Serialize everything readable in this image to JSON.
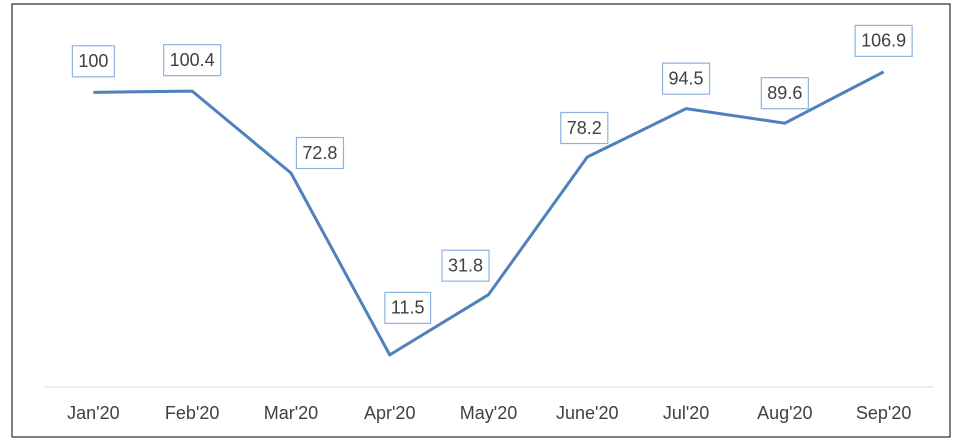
{
  "chart_data": {
    "type": "line",
    "categories": [
      "Jan'20",
      "Feb'20",
      "Mar'20",
      "Apr'20",
      "May'20",
      "June'20",
      "Jul'20",
      "Aug'20",
      "Sep'20"
    ],
    "values": [
      100,
      100.4,
      72.8,
      11.5,
      31.8,
      78.2,
      94.5,
      89.6,
      106.9
    ],
    "color": "#4f81bd",
    "ylim": [
      0,
      120
    ],
    "grid": false
  }
}
